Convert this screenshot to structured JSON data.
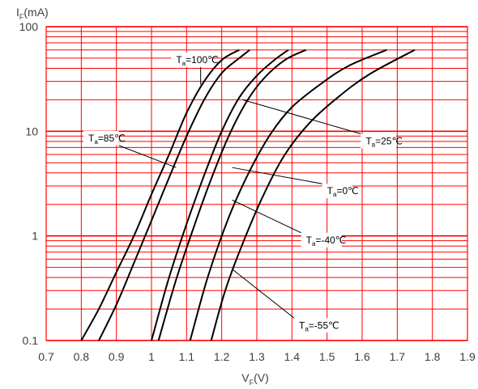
{
  "chart_data": {
    "type": "line",
    "title": "",
    "xlabel": "VF(V)",
    "ylabel": "IF(mA)",
    "xlim": [
      0.7,
      1.9
    ],
    "ylim": [
      0.1,
      100
    ],
    "yscale": "log",
    "grid": true,
    "colors": {
      "grid": "#ff0000",
      "line": "#000000",
      "text": "#404040"
    },
    "x_ticks": [
      "0.7",
      "0.8",
      "0.9",
      "1",
      "1.1",
      "1.2",
      "1.3",
      "1.4",
      "1.5",
      "1.6",
      "1.7",
      "1.8",
      "1.9"
    ],
    "y_ticks": [
      "100",
      "10",
      "1",
      "0.1"
    ],
    "y_tick_values": [
      100,
      10,
      1,
      0.1
    ],
    "series": [
      {
        "name": "Ta=100℃",
        "label": "T",
        "label_sub": "a",
        "label_rest": "=100℃",
        "points": [
          [
            0.8,
            0.1
          ],
          [
            0.85,
            0.2
          ],
          [
            0.9,
            0.45
          ],
          [
            0.95,
            1.0
          ],
          [
            1.0,
            2.5
          ],
          [
            1.05,
            6.0
          ],
          [
            1.1,
            15
          ],
          [
            1.15,
            30
          ],
          [
            1.2,
            48
          ],
          [
            1.25,
            60
          ]
        ]
      },
      {
        "name": "Ta=85℃",
        "label": "T",
        "label_sub": "a",
        "label_rest": "=85℃",
        "points": [
          [
            0.85,
            0.1
          ],
          [
            0.9,
            0.22
          ],
          [
            0.95,
            0.55
          ],
          [
            1.0,
            1.4
          ],
          [
            1.05,
            3.6
          ],
          [
            1.1,
            9.0
          ],
          [
            1.15,
            20
          ],
          [
            1.2,
            36
          ],
          [
            1.25,
            50
          ],
          [
            1.28,
            60
          ]
        ]
      },
      {
        "name": "Ta=25℃",
        "label": "T",
        "label_sub": "a",
        "label_rest": "=25℃",
        "points": [
          [
            1.0,
            0.1
          ],
          [
            1.05,
            0.4
          ],
          [
            1.1,
            1.3
          ],
          [
            1.15,
            3.8
          ],
          [
            1.2,
            10
          ],
          [
            1.25,
            21
          ],
          [
            1.3,
            34
          ],
          [
            1.35,
            48
          ],
          [
            1.39,
            60
          ]
        ]
      },
      {
        "name": "Ta=0℃",
        "label": "T",
        "label_sub": "a",
        "label_rest": "=0℃",
        "points": [
          [
            1.02,
            0.1
          ],
          [
            1.07,
            0.38
          ],
          [
            1.12,
            1.2
          ],
          [
            1.17,
            3.5
          ],
          [
            1.22,
            9.0
          ],
          [
            1.27,
            19
          ],
          [
            1.32,
            32
          ],
          [
            1.38,
            48
          ],
          [
            1.44,
            60
          ]
        ]
      },
      {
        "name": "Ta=-40℃",
        "label": "T",
        "label_sub": "a",
        "label_rest": "=-40℃",
        "points": [
          [
            1.11,
            0.1
          ],
          [
            1.16,
            0.4
          ],
          [
            1.22,
            1.5
          ],
          [
            1.28,
            4.2
          ],
          [
            1.34,
            9.5
          ],
          [
            1.4,
            17
          ],
          [
            1.48,
            28
          ],
          [
            1.56,
            42
          ],
          [
            1.67,
            60
          ]
        ]
      },
      {
        "name": "Ta=-55℃",
        "label": "T",
        "label_sub": "a",
        "label_rest": "=-55℃",
        "points": [
          [
            1.17,
            0.1
          ],
          [
            1.21,
            0.3
          ],
          [
            1.26,
            0.85
          ],
          [
            1.32,
            2.5
          ],
          [
            1.38,
            6.0
          ],
          [
            1.45,
            12
          ],
          [
            1.53,
            21
          ],
          [
            1.62,
            35
          ],
          [
            1.75,
            60
          ]
        ]
      }
    ],
    "annotations": [
      {
        "series": 0,
        "text_pos": [
          1.07,
          45
        ],
        "arrow_to": [
          1.14,
          28
        ]
      },
      {
        "series": 1,
        "text_pos": [
          0.82,
          8
        ],
        "arrow_to": [
          1.07,
          4.5
        ]
      },
      {
        "series": 2,
        "text_pos": [
          1.61,
          7.5
        ],
        "arrow_to": [
          1.26,
          20
        ]
      },
      {
        "series": 3,
        "text_pos": [
          1.5,
          2.5
        ],
        "arrow_to": [
          1.23,
          4.5
        ]
      },
      {
        "series": 4,
        "text_pos": [
          1.44,
          0.85
        ],
        "arrow_to": [
          1.23,
          2.2
        ]
      },
      {
        "series": 5,
        "text_pos": [
          1.42,
          0.13
        ],
        "arrow_to": [
          1.23,
          0.48
        ]
      }
    ]
  }
}
